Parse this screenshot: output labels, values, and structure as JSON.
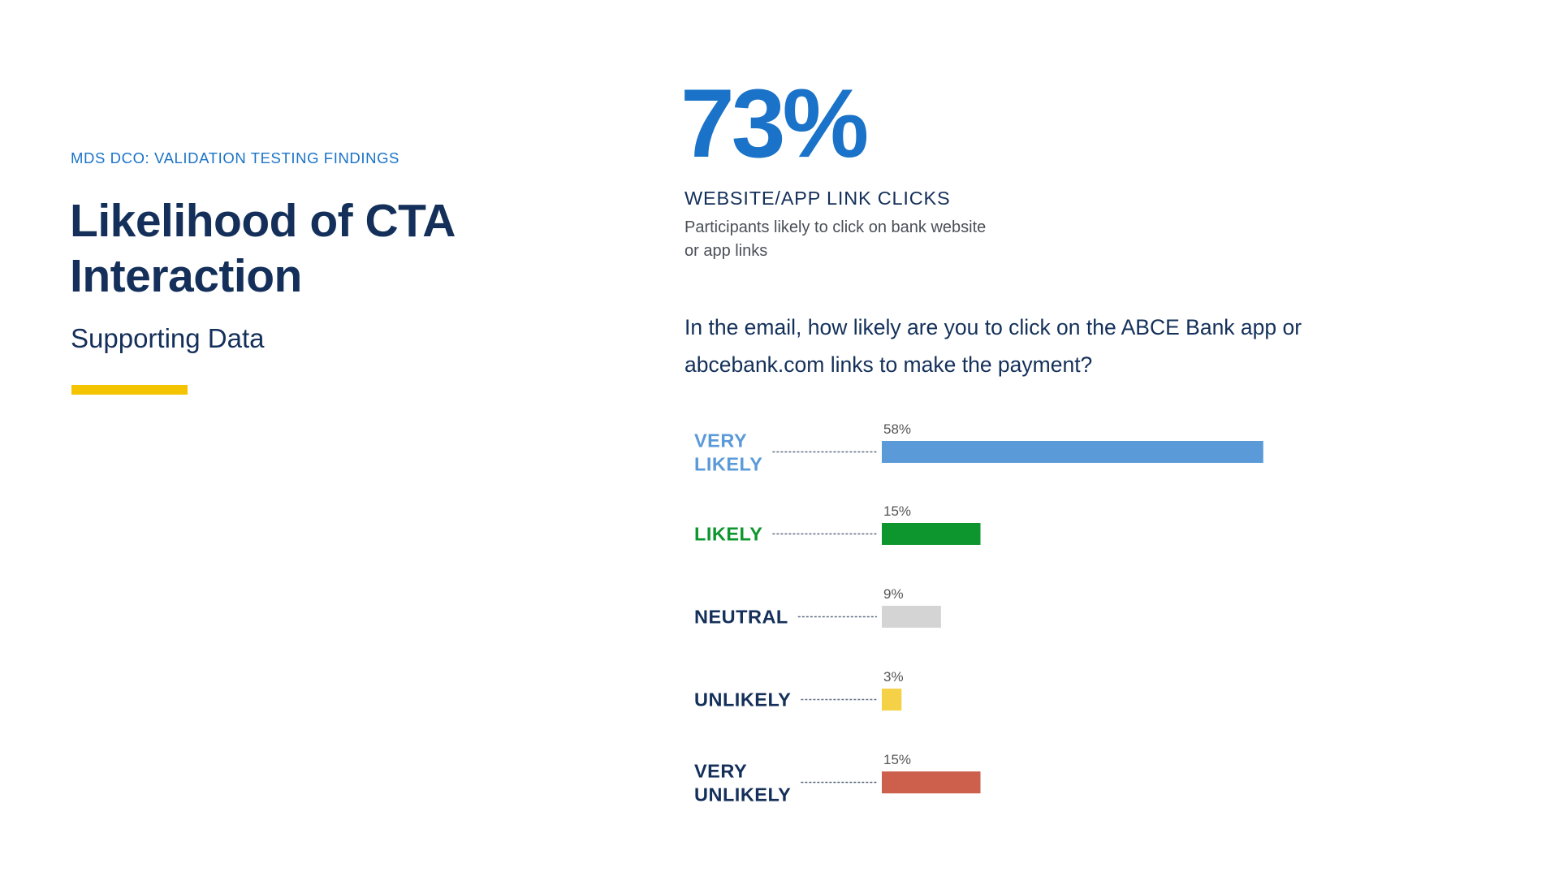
{
  "header": {
    "eyebrow": "MDS DCO: VALIDATION TESTING FINDINGS",
    "title": "Likelihood of CTA Interaction",
    "subtitle": "Supporting Data"
  },
  "stat": {
    "value": "73%",
    "label": "WEBSITE/APP LINK CLICKS",
    "description": "Participants likely to click on bank website or app links"
  },
  "question": "In the email, how likely are you to click on the ABCE Bank app or abcebank.com links to make the payment?",
  "colors": {
    "brand_blue": "#1a73c8",
    "navy": "#14305a",
    "accent_yellow": "#f5c400"
  },
  "chart_data": {
    "type": "bar",
    "orientation": "horizontal",
    "categories": [
      "VERY LIKELY",
      "LIKELY",
      "NEUTRAL",
      "UNLIKELY",
      "VERY UNLIKELY"
    ],
    "values": [
      58,
      15,
      9,
      3,
      15
    ],
    "value_labels": [
      "58%",
      "15%",
      "9%",
      "3%",
      "15%"
    ],
    "bar_colors": [
      "#5b9ad9",
      "#0e962e",
      "#d4d4d4",
      "#f5d148",
      "#cd5f4d"
    ],
    "label_colors": [
      "#5b9ad9",
      "#0e962e",
      "#14305a",
      "#14305a",
      "#14305a"
    ],
    "unit": "%",
    "xlim": [
      0,
      100
    ],
    "grid": false,
    "legend": "none"
  }
}
